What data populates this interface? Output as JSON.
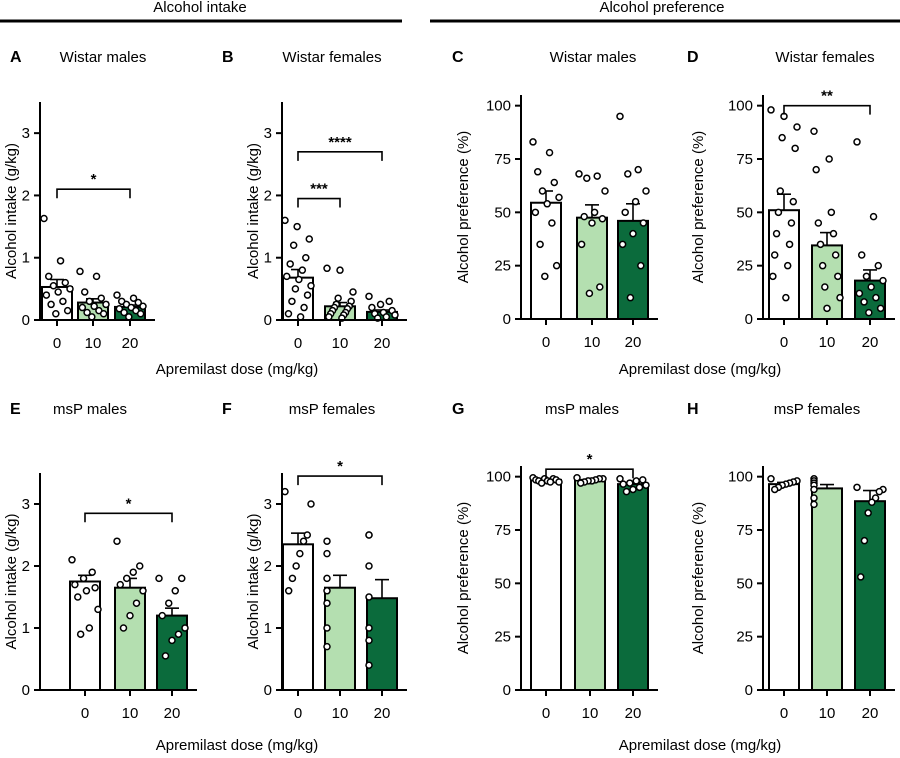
{
  "section_headers": {
    "intake": "Alcohol intake",
    "preference": "Alcohol preference"
  },
  "shared_xlabel": "Apremilast dose (mg/kg)",
  "group_colors": {
    "0": "#ffffff",
    "10": "#b4dfb0",
    "20": "#0b6b3c"
  },
  "chart_data": [
    {
      "type": "bar",
      "id": "A",
      "panel_letter": "A",
      "title": "Wistar males",
      "ylabel": "Alcohol intake (g/kg)",
      "xlabel": "",
      "categories": [
        "0",
        "10",
        "20"
      ],
      "ylim": [
        0,
        3.5
      ],
      "yticks": [
        0,
        1,
        2,
        3
      ],
      "ytick_labels": [
        "0",
        "1",
        "2",
        "3"
      ],
      "values": [
        0.53,
        0.28,
        0.21
      ],
      "sem": [
        0.12,
        0.06,
        0.03
      ],
      "points": [
        [
          1.63,
          0.95,
          0.7,
          0.6,
          0.55,
          0.5,
          0.45,
          0.4,
          0.3,
          0.25,
          0.15,
          0.1
        ],
        [
          0.78,
          0.7,
          0.45,
          0.35,
          0.3,
          0.25,
          0.22,
          0.2,
          0.15,
          0.12,
          0.1,
          0.05
        ],
        [
          0.4,
          0.35,
          0.3,
          0.28,
          0.25,
          0.22,
          0.2,
          0.18,
          0.15,
          0.12,
          0.1,
          0.05
        ]
      ],
      "significance": [
        {
          "from": 0,
          "to": 2,
          "label": "*",
          "y": 2.1
        }
      ]
    },
    {
      "type": "bar",
      "id": "B",
      "panel_letter": "B",
      "title": "Wistar females",
      "ylabel": "Alcohol intake (g/kg)",
      "xlabel": "",
      "categories": [
        "0",
        "10",
        "20"
      ],
      "ylim": [
        0,
        3.5
      ],
      "yticks": [
        0,
        1,
        2,
        3
      ],
      "ytick_labels": [
        "0",
        "1",
        "2",
        "3"
      ],
      "values": [
        0.68,
        0.22,
        0.13
      ],
      "sem": [
        0.13,
        0.06,
        0.03
      ],
      "points": [
        [
          1.6,
          1.5,
          1.3,
          1.2,
          1.0,
          0.9,
          0.8,
          0.7,
          0.65,
          0.55,
          0.5,
          0.4,
          0.3,
          0.2,
          0.1,
          0.05
        ],
        [
          0.83,
          0.8,
          0.45,
          0.35,
          0.3,
          0.25,
          0.22,
          0.2,
          0.18,
          0.15,
          0.12,
          0.1,
          0.08,
          0.05,
          0.03
        ],
        [
          0.38,
          0.3,
          0.25,
          0.2,
          0.15,
          0.12,
          0.1,
          0.08,
          0.05,
          0.03
        ]
      ],
      "significance": [
        {
          "from": 0,
          "to": 2,
          "label": "****",
          "y": 2.7
        },
        {
          "from": 0,
          "to": 1,
          "label": "***",
          "y": 1.95
        }
      ]
    },
    {
      "type": "bar",
      "id": "C",
      "panel_letter": "C",
      "title": "Wistar males",
      "ylabel": "Alcohol preference (%)",
      "xlabel": "",
      "categories": [
        "0",
        "10",
        "20"
      ],
      "ylim": [
        0,
        105
      ],
      "yticks": [
        0,
        25,
        50,
        75,
        100
      ],
      "ytick_labels": [
        "0",
        "25",
        "50",
        "75",
        "100"
      ],
      "values": [
        54.5,
        47.5,
        46
      ],
      "sem": [
        5.5,
        6,
        8
      ],
      "points": [
        [
          83,
          78,
          69,
          64,
          60,
          57,
          54,
          50,
          45,
          35,
          25,
          20
        ],
        [
          68,
          67,
          66,
          60,
          50,
          48,
          47,
          45,
          35,
          15,
          12
        ],
        [
          95,
          70,
          68,
          60,
          55,
          50,
          45,
          40,
          35,
          25,
          10
        ]
      ],
      "significance": []
    },
    {
      "type": "bar",
      "id": "D",
      "panel_letter": "D",
      "title": "Wistar females",
      "ylabel": "Alcohol preference (%)",
      "xlabel": "",
      "categories": [
        "0",
        "10",
        "20"
      ],
      "ylim": [
        0,
        105
      ],
      "yticks": [
        0,
        25,
        50,
        75,
        100
      ],
      "ytick_labels": [
        "0",
        "25",
        "50",
        "75",
        "100"
      ],
      "values": [
        51,
        34.5,
        18
      ],
      "sem": [
        7.5,
        6,
        5
      ],
      "points": [
        [
          98,
          95,
          90,
          85,
          80,
          60,
          55,
          50,
          45,
          40,
          35,
          30,
          25,
          20,
          10
        ],
        [
          88,
          75,
          70,
          50,
          45,
          40,
          35,
          30,
          25,
          20,
          15,
          10,
          5
        ],
        [
          83,
          48,
          30,
          25,
          20,
          18,
          15,
          12,
          10,
          8,
          5,
          3
        ]
      ],
      "significance": [
        {
          "from": 0,
          "to": 2,
          "label": "**",
          "y": 100
        }
      ]
    },
    {
      "type": "bar",
      "id": "E",
      "panel_letter": "E",
      "title": "msP males",
      "ylabel": "Alcohol intake (g/kg)",
      "xlabel": "",
      "categories": [
        "0",
        "10",
        "20"
      ],
      "ylim": [
        0,
        3.5
      ],
      "yticks": [
        0,
        1,
        2,
        3
      ],
      "ytick_labels": [
        "0",
        "1",
        "2",
        "3"
      ],
      "values": [
        1.75,
        1.65,
        1.2
      ],
      "sem": [
        0.1,
        0.15,
        0.12
      ],
      "points": [
        [
          2.1,
          1.9,
          1.8,
          1.7,
          1.65,
          1.6,
          1.5,
          1.3,
          1.0,
          0.9
        ],
        [
          2.4,
          2.0,
          1.9,
          1.8,
          1.7,
          1.6,
          1.4,
          1.2,
          1.0
        ],
        [
          1.8,
          1.8,
          1.6,
          1.4,
          1.2,
          1.0,
          0.9,
          0.8,
          0.55
        ]
      ],
      "significance": [
        {
          "from": 0,
          "to": 2,
          "label": "*",
          "y": 2.85
        }
      ]
    },
    {
      "type": "bar",
      "id": "F",
      "panel_letter": "F",
      "title": "msP females",
      "ylabel": "Alcohol intake (g/kg)",
      "xlabel": "",
      "categories": [
        "0",
        "10",
        "20"
      ],
      "ylim": [
        0,
        3.5
      ],
      "yticks": [
        0,
        1,
        2,
        3
      ],
      "ytick_labels": [
        "0",
        "1",
        "2",
        "3"
      ],
      "values": [
        2.35,
        1.65,
        1.48
      ],
      "sem": [
        0.18,
        0.2,
        0.3
      ],
      "points": [
        [
          3.2,
          3.0,
          2.5,
          2.4,
          2.2,
          2.0,
          1.8,
          1.6
        ],
        [
          2.4,
          2.2,
          1.8,
          1.6,
          1.4,
          1.0,
          0.7
        ],
        [
          2.5,
          2.5,
          2.0,
          1.5,
          1.0,
          0.8,
          0.4
        ]
      ],
      "significance": [
        {
          "from": 0,
          "to": 2,
          "label": "*",
          "y": 3.45
        }
      ]
    },
    {
      "type": "bar",
      "id": "G",
      "panel_letter": "G",
      "title": "msP males",
      "ylabel": "Alcohol preference (%)",
      "xlabel": "",
      "categories": [
        "0",
        "10",
        "20"
      ],
      "ylim": [
        0,
        105
      ],
      "yticks": [
        0,
        25,
        50,
        75,
        100
      ],
      "ytick_labels": [
        "0",
        "25",
        "50",
        "75",
        "100"
      ],
      "values": [
        98.5,
        98.5,
        96.5
      ],
      "sem": [
        0.3,
        0.3,
        0.7
      ],
      "points": [
        [
          99.5,
          99,
          99,
          98.5,
          98.5,
          98,
          98,
          97.5,
          97.5,
          97
        ],
        [
          99.5,
          99,
          99,
          98.5,
          98,
          98,
          97.5,
          97
        ],
        [
          99,
          98.5,
          98,
          97,
          96.5,
          96,
          95,
          94,
          93
        ]
      ],
      "significance": [
        {
          "from": 0,
          "to": 2,
          "label": "*",
          "y": 103.5
        }
      ]
    },
    {
      "type": "bar",
      "id": "H",
      "panel_letter": "H",
      "title": "msP females",
      "ylabel": "Alcohol preference (%)",
      "xlabel": "",
      "categories": [
        "0",
        "10",
        "20"
      ],
      "ylim": [
        0,
        105
      ],
      "yticks": [
        0,
        25,
        50,
        75,
        100
      ],
      "ytick_labels": [
        "0",
        "25",
        "50",
        "75",
        "100"
      ],
      "values": [
        96.5,
        94.5,
        88.5
      ],
      "sem": [
        0.8,
        1.8,
        5
      ],
      "points": [
        [
          99,
          98,
          97.5,
          97,
          96.5,
          96,
          95,
          94
        ],
        [
          99,
          98,
          97,
          96,
          94,
          90,
          87
        ],
        [
          95,
          94,
          93,
          90,
          88,
          83,
          70,
          53
        ]
      ],
      "significance": []
    }
  ]
}
